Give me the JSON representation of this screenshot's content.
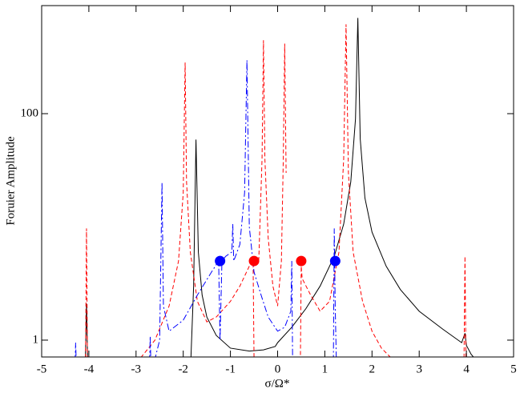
{
  "chart_data": {
    "type": "line",
    "xlabel": "σ/Ω*",
    "ylabel": "Foruier Amplitude",
    "xlim": [
      -5,
      5
    ],
    "xticks": [
      -5,
      -4,
      -3,
      -2,
      -1,
      0,
      1,
      2,
      3,
      4,
      5
    ],
    "ylim": [
      0.71,
      900
    ],
    "yticks": [
      1,
      100
    ],
    "log_y": true,
    "series": [
      {
        "color": "#000000",
        "dash": "solid",
        "x": [
          -4.08,
          -4.05,
          -4.02,
          -3.0,
          -1.85,
          -1.78,
          -1.73,
          -1.68,
          -1.6,
          -1.5,
          -1.3,
          -1.0,
          -0.6,
          -0.3,
          -0.05,
          0.0,
          0.3,
          0.6,
          0.9,
          1.2,
          1.4,
          1.55,
          1.65,
          1.7,
          1.75,
          1.85,
          2.0,
          2.3,
          2.6,
          3.0,
          3.5,
          3.9,
          3.97,
          4.0,
          4.1,
          4.3
        ],
        "values": [
          0.5,
          2.1,
          0.5,
          null,
          0.5,
          3,
          59,
          6,
          2.5,
          1.6,
          1.1,
          0.85,
          0.8,
          0.82,
          0.88,
          0.95,
          1.3,
          1.9,
          3,
          5.5,
          10.6,
          25,
          90,
          700,
          60,
          18,
          9,
          4.5,
          2.8,
          1.8,
          1.25,
          0.95,
          1.15,
          0.9,
          0.75,
          0.6
        ]
      },
      {
        "color": "#ff0000",
        "dash": "dashed",
        "x": [
          -4.07,
          -4.05,
          -4.03,
          -3.5,
          -2.9,
          -2.6,
          -2.3,
          -2.1,
          -2.0,
          -1.96,
          -1.93,
          -1.85,
          -1.7,
          -1.5,
          -1.3,
          -1.0,
          -0.8,
          -0.6,
          -0.52,
          -0.5,
          -0.48,
          -0.44,
          -0.4,
          -0.33,
          -0.3,
          -0.27,
          -0.2,
          -0.1,
          0.0,
          0.08,
          0.12,
          0.15,
          0.18,
          0.3,
          0.48,
          0.5,
          0.52,
          0.7,
          0.9,
          1.1,
          1.3,
          1.4,
          1.45,
          1.5,
          1.6,
          1.8,
          2.0,
          2.2,
          2.4,
          3.2,
          3.95,
          3.97,
          3.99
        ],
        "values": [
          0.7,
          9.7,
          0.7,
          null,
          0.7,
          1.0,
          2.0,
          5,
          20,
          283,
          25,
          6,
          2.2,
          1.45,
          1.6,
          2.2,
          3.0,
          4.5,
          5,
          0.7,
          null,
          null,
          5,
          40,
          445,
          40,
          8,
          3,
          2,
          5,
          40,
          415,
          30,
          null,
          0.5,
          4.5,
          3.5,
          2.5,
          1.8,
          2.2,
          6,
          40,
          615,
          30,
          6,
          2.2,
          1.2,
          0.85,
          0.7,
          null,
          0.7,
          5.5,
          0.7
        ]
      },
      {
        "color": "#0000ff",
        "dash": "dashdot",
        "x": [
          -4.3,
          -4.28,
          -4.26,
          -3.5,
          -2.72,
          -2.7,
          -2.68,
          -2.5,
          -2.45,
          -2.42,
          -2.3,
          -2.0,
          -1.7,
          -1.4,
          -1.25,
          -1.22,
          -1.18,
          -1.1,
          -0.97,
          -0.95,
          -0.93,
          -0.8,
          -0.7,
          -0.65,
          -0.6,
          -0.5,
          -0.35,
          -0.2,
          0.0,
          0.15,
          0.28,
          0.3,
          0.32,
          0.8,
          1.18,
          1.2,
          1.22,
          1.25
        ],
        "values": [
          0.5,
          0.95,
          0.5,
          null,
          0.5,
          1.08,
          0.5,
          1,
          24.6,
          2,
          1.2,
          1.5,
          2.5,
          4,
          5,
          1.0,
          5,
          5.5,
          6,
          10.6,
          5,
          7,
          20,
          297,
          10,
          4,
          2.5,
          1.6,
          1.2,
          1.3,
          1.8,
          5,
          0.5,
          null,
          0.5,
          9.7,
          2,
          0.5
        ]
      }
    ],
    "points": [
      {
        "x": -1.22,
        "y": 5,
        "color": "#0000ff"
      },
      {
        "x": -0.5,
        "y": 5,
        "color": "#ff0000"
      },
      {
        "x": 0.5,
        "y": 5,
        "color": "#ff0000"
      },
      {
        "x": 1.22,
        "y": 5,
        "color": "#0000ff"
      }
    ]
  }
}
